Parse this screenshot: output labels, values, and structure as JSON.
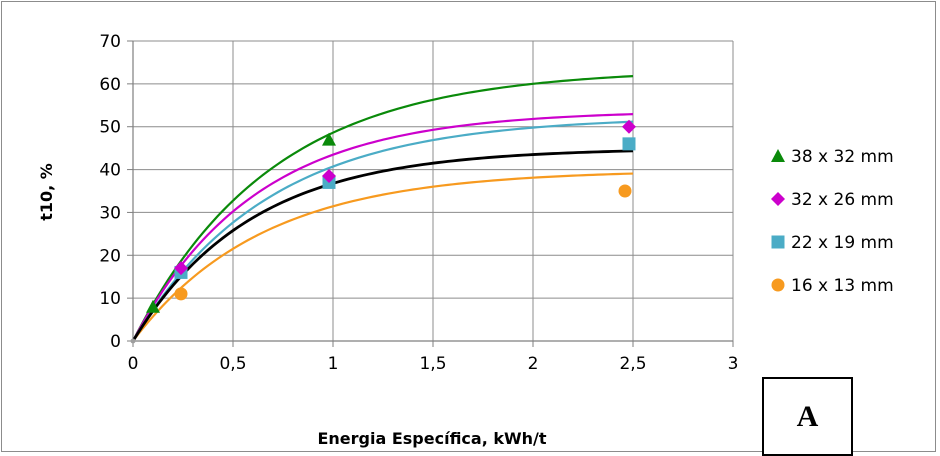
{
  "panel_label": "A",
  "chart_data": {
    "type": "scatter",
    "xlabel": "Energia Específica, kWh/t",
    "ylabel": "t10, %",
    "xlim": [
      0,
      3
    ],
    "ylim": [
      0,
      70
    ],
    "x_ticks": [
      0,
      0.5,
      1,
      1.5,
      2,
      2.5,
      3
    ],
    "x_tick_labels": [
      "0",
      "0,5",
      "1",
      "1,5",
      "2",
      "2,5",
      "3"
    ],
    "y_ticks": [
      0,
      10,
      20,
      30,
      40,
      50,
      60,
      70
    ],
    "y_tick_labels": [
      "0",
      "10",
      "20",
      "30",
      "40",
      "50",
      "60",
      "70"
    ],
    "grid": true,
    "legend_position": "right",
    "series": [
      {
        "name": "38 x 32 mm",
        "marker": "triangle",
        "color": "#0a8a0a",
        "x": [
          0.1,
          0.98
        ],
        "y": [
          8,
          47
        ],
        "fit_asymptote": 63.5,
        "fit_rate": 1.45
      },
      {
        "name": "32 x 26 mm",
        "marker": "diamond",
        "color": "#cc00cc",
        "x": [
          0.24,
          0.98,
          2.48
        ],
        "y": [
          17,
          38.5,
          50
        ],
        "fit_asymptote": 53.8,
        "fit_rate": 1.65
      },
      {
        "name": "22 x 19 mm",
        "marker": "square",
        "color": "#4bacc6",
        "x": [
          0.24,
          0.98,
          2.48
        ],
        "y": [
          16,
          37,
          46
        ],
        "fit_asymptote": 52.4,
        "fit_rate": 1.5
      },
      {
        "name": "16 x 13 mm",
        "marker": "circle",
        "color": "#f79a1f",
        "x": [
          0.24,
          0.98,
          2.46
        ],
        "y": [
          11,
          37.5,
          35
        ],
        "fit_asymptote": 39.9,
        "fit_rate": 1.55
      }
    ],
    "combined_fit": {
      "color": "#000000",
      "fit_asymptote": 45,
      "fit_rate": 1.7
    }
  }
}
